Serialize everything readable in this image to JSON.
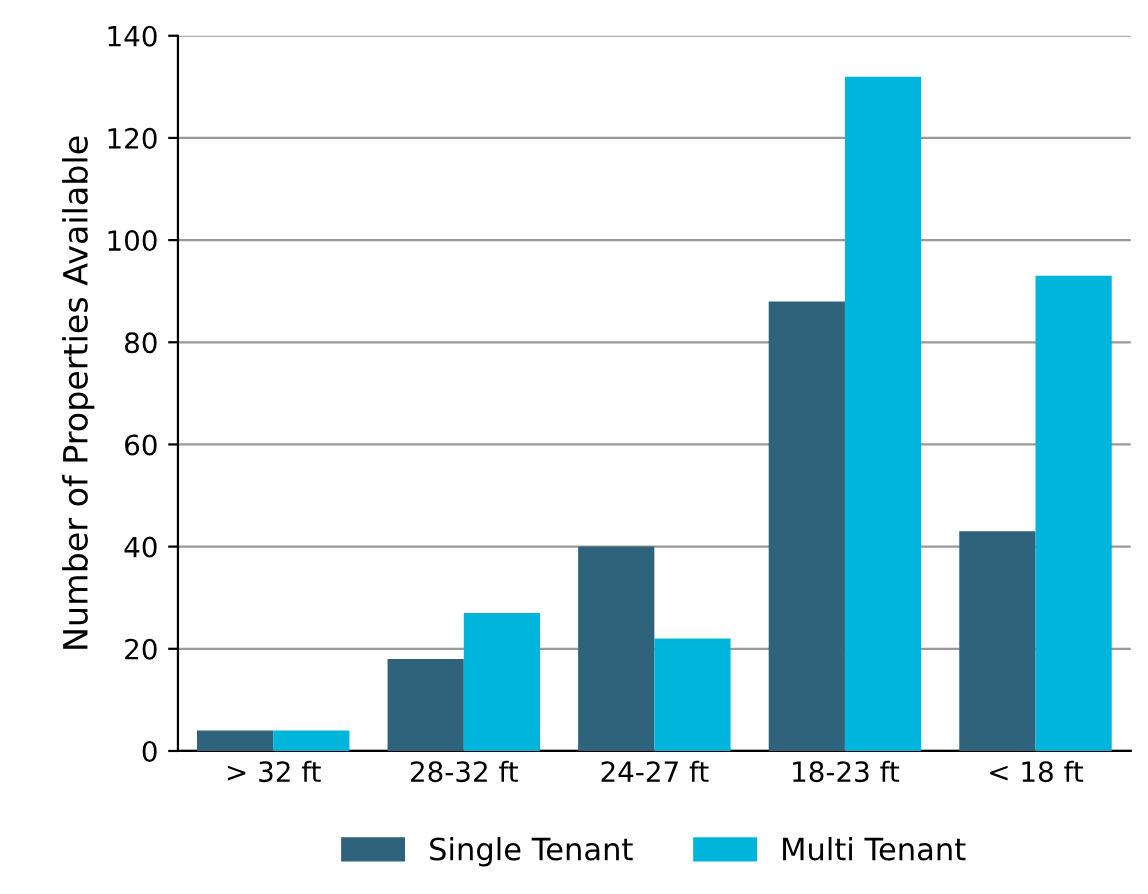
{
  "chart_data": {
    "type": "bar",
    "ylabel": "Number of Properties Available",
    "categories": [
      "> 32 ft",
      "28-32 ft",
      "24-27 ft",
      "18-23 ft",
      "< 18 ft"
    ],
    "series": [
      {
        "name": "Single Tenant",
        "color": "#2e637b",
        "values": [
          4,
          18,
          40,
          88,
          43
        ]
      },
      {
        "name": "Multi Tenant",
        "color": "#00b5dc",
        "values": [
          4,
          27,
          22,
          132,
          93
        ]
      }
    ],
    "ylim": [
      0,
      140
    ],
    "yticks": [
      0,
      20,
      40,
      60,
      80,
      100,
      120,
      140
    ],
    "grid": "y",
    "legend": "bottom"
  }
}
